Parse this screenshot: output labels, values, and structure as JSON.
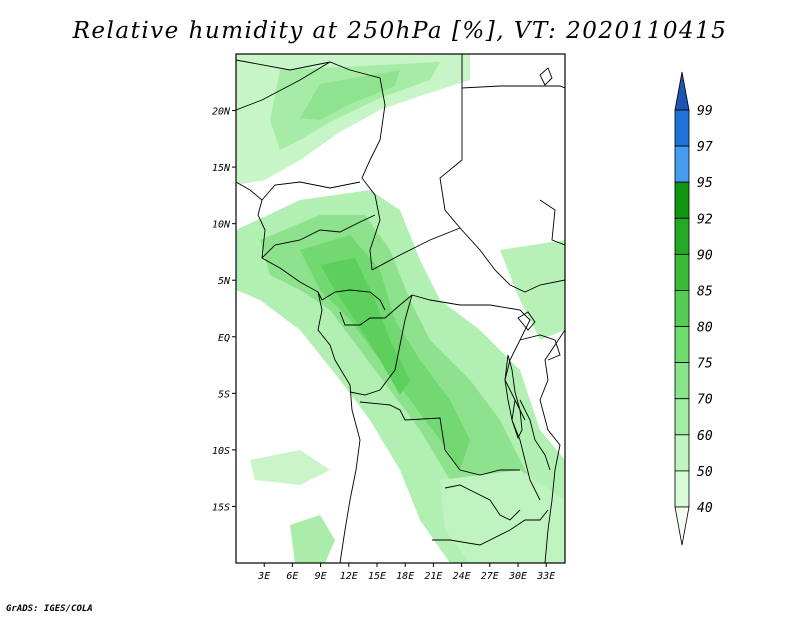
{
  "title": "Relative humidity at 250hPa [%], VT: 2020110415",
  "credit": "GrADS: IGES/COLA",
  "map": {
    "projection": "lat-lon",
    "lon_range_deg": [
      0,
      35
    ],
    "lat_range_deg": [
      -20,
      25
    ],
    "lon_tick_labels": [
      "3E",
      "6E",
      "9E",
      "12E",
      "15E",
      "18E",
      "21E",
      "24E",
      "27E",
      "30E",
      "33E"
    ],
    "lat_tick_labels": [
      "20N",
      "15N",
      "10N",
      "5N",
      "EQ",
      "5S",
      "10S",
      "15S"
    ],
    "coastline_color": "#000000"
  },
  "colorbar": {
    "levels": [
      "40",
      "50",
      "60",
      "70",
      "75",
      "80",
      "85",
      "90",
      "92",
      "95",
      "97",
      "99"
    ],
    "colors": [
      "#f0fff0",
      "#d7fad7",
      "#c0f5c0",
      "#a3eda3",
      "#8ae48a",
      "#6fdc6f",
      "#55cd55",
      "#3abc3a",
      "#25a825",
      "#129512",
      "#459cf0",
      "#1e72d8",
      "#1c55b4"
    ]
  }
}
